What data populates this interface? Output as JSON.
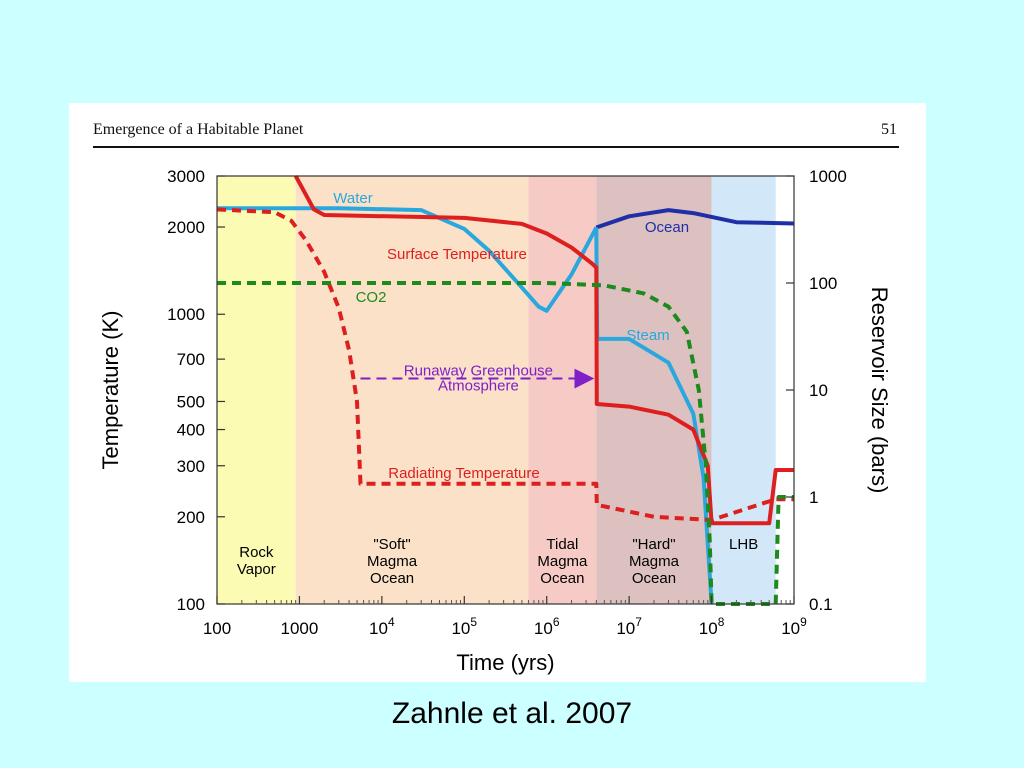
{
  "header": {
    "book_title": "Emergence of a Habitable Planet",
    "page_number": "51"
  },
  "caption": "Zahnle et al. 2007",
  "chart_data": {
    "type": "line",
    "xlabel": "Time (yrs)",
    "ylabel": "Temperature (K)",
    "ylabel_right": "Reservoir Size (bars)",
    "x_scale": "log",
    "y_scale": "log",
    "y_right_scale": "log",
    "xlim": [
      100,
      1000000000
    ],
    "ylim": [
      100,
      3000
    ],
    "ylim_right": [
      0.1,
      1000
    ],
    "x_ticks": [
      {
        "value": 100,
        "label": "100"
      },
      {
        "value": 1000,
        "label": "1000"
      },
      {
        "value": 10000,
        "label": "10",
        "exp": "4"
      },
      {
        "value": 100000,
        "label": "10",
        "exp": "5"
      },
      {
        "value": 1000000,
        "label": "10",
        "exp": "6"
      },
      {
        "value": 10000000,
        "label": "10",
        "exp": "7"
      },
      {
        "value": 100000000,
        "label": "10",
        "exp": "8"
      },
      {
        "value": 1000000000,
        "label": "10",
        "exp": "9"
      }
    ],
    "y_ticks": [
      {
        "value": 3000,
        "label": "3000"
      },
      {
        "value": 2000,
        "label": "2000"
      },
      {
        "value": 1000,
        "label": "1000"
      },
      {
        "value": 700,
        "label": "700"
      },
      {
        "value": 500,
        "label": "500"
      },
      {
        "value": 400,
        "label": "400"
      },
      {
        "value": 300,
        "label": "300"
      },
      {
        "value": 200,
        "label": "200"
      },
      {
        "value": 100,
        "label": "100"
      }
    ],
    "y_right_ticks": [
      {
        "value": 1000,
        "label": "1000"
      },
      {
        "value": 100,
        "label": "100"
      },
      {
        "value": 10,
        "label": "10"
      },
      {
        "value": 1,
        "label": "1"
      },
      {
        "value": 0.1,
        "label": "0.1"
      }
    ],
    "regions": [
      {
        "name": "Rock Vapor",
        "lines": [
          "Rock",
          "Vapor"
        ],
        "x_start": 100,
        "x_end": 900,
        "color": "#fbfbb4"
      },
      {
        "name": "\"Soft\" Magma Ocean",
        "lines": [
          "\"Soft\"",
          "Magma",
          "Ocean"
        ],
        "x_start": 900,
        "x_end": 600000,
        "color": "#fbe1c8"
      },
      {
        "name": "Tidal Magma Ocean",
        "lines": [
          "Tidal",
          "Magma",
          "Ocean"
        ],
        "x_start": 600000,
        "x_end": 4000000,
        "color": "#f6cbc5"
      },
      {
        "name": "\"Hard\" Magma Ocean",
        "lines": [
          "\"Hard\"",
          "Magma",
          "Ocean"
        ],
        "x_start": 4000000,
        "x_end": 100000000,
        "color": "#ddc1c0"
      },
      {
        "name": "LHB",
        "lines": [
          "LHB"
        ],
        "x_start": 100000000,
        "x_end": 600000000,
        "color": "#d2e8f8"
      }
    ],
    "series": [
      {
        "name": "Water",
        "axis": "right",
        "color": "#2aa7dd",
        "style": "solid",
        "points": [
          [
            100,
            500
          ],
          [
            3000,
            500
          ],
          [
            30000,
            480
          ],
          [
            100000,
            320
          ],
          [
            200000,
            200
          ],
          [
            400000,
            110
          ],
          [
            800000,
            60
          ],
          [
            1000000,
            55
          ],
          [
            2000000,
            120
          ],
          [
            4000000,
            330
          ]
        ]
      },
      {
        "name": "Ocean",
        "axis": "right",
        "color": "#1f2fa8",
        "style": "solid",
        "points": [
          [
            4000000,
            330
          ],
          [
            10000000,
            420
          ],
          [
            30000000,
            480
          ],
          [
            60000000,
            450
          ],
          [
            200000000,
            370
          ],
          [
            1000000000,
            360
          ]
        ]
      },
      {
        "name": "Steam",
        "axis": "right",
        "color": "#2aa7dd",
        "style": "solid",
        "points": [
          [
            4000000,
            330
          ],
          [
            4100000,
            30
          ],
          [
            10000000,
            30
          ],
          [
            30000000,
            18
          ],
          [
            60000000,
            6
          ],
          [
            80000000,
            1.5
          ],
          [
            100000000,
            0.1
          ]
        ]
      },
      {
        "name": "Surface Temperature",
        "axis": "left",
        "color": "#dd1f1f",
        "style": "solid",
        "points": [
          [
            900,
            3000
          ],
          [
            1500,
            2300
          ],
          [
            2000,
            2200
          ],
          [
            100000,
            2150
          ],
          [
            500000,
            2050
          ],
          [
            1000000,
            1900
          ],
          [
            2000000,
            1700
          ],
          [
            3500000,
            1500
          ],
          [
            4000000,
            1450
          ],
          [
            4050000,
            490
          ],
          [
            10000000,
            480
          ],
          [
            30000000,
            450
          ],
          [
            60000000,
            400
          ],
          [
            90000000,
            300
          ],
          [
            100000000,
            190
          ],
          [
            500000000,
            190
          ],
          [
            600000000,
            290
          ],
          [
            1000000000,
            290
          ]
        ]
      },
      {
        "name": "Radiating Temperature",
        "axis": "left",
        "color": "#dd1f1f",
        "style": "dashed",
        "points": [
          [
            100,
            2300
          ],
          [
            500,
            2250
          ],
          [
            800,
            2100
          ],
          [
            1200,
            1800
          ],
          [
            2000,
            1400
          ],
          [
            3000,
            1050
          ],
          [
            4000,
            750
          ],
          [
            5000,
            500
          ],
          [
            5500,
            260
          ],
          [
            4000000,
            260
          ],
          [
            4050000,
            220
          ],
          [
            20000000,
            200
          ],
          [
            100000000,
            195
          ],
          [
            600000000,
            230
          ],
          [
            1000000000,
            230
          ]
        ]
      },
      {
        "name": "CO2",
        "axis": "right",
        "color": "#1c8a1c",
        "style": "dashed",
        "points": [
          [
            100,
            100
          ],
          [
            1000000,
            100
          ],
          [
            5000000,
            95
          ],
          [
            15000000,
            80
          ],
          [
            30000000,
            60
          ],
          [
            50000000,
            35
          ],
          [
            70000000,
            10
          ],
          [
            85000000,
            2
          ],
          [
            95000000,
            0.4
          ],
          [
            100000000,
            0.1
          ],
          [
            600000000,
            0.1
          ],
          [
            650000000,
            1
          ],
          [
            1000000000,
            1
          ]
        ]
      }
    ],
    "annotations": [
      {
        "name": "Runaway Greenhouse Atmosphere",
        "lines": [
          "Runaway Greenhouse",
          "Atmosphere"
        ],
        "color": "#7f20c8",
        "arrow_from": 5500,
        "arrow_to": 4000000,
        "arrow_y_value": 600
      }
    ],
    "grid": false,
    "legend": "none"
  }
}
